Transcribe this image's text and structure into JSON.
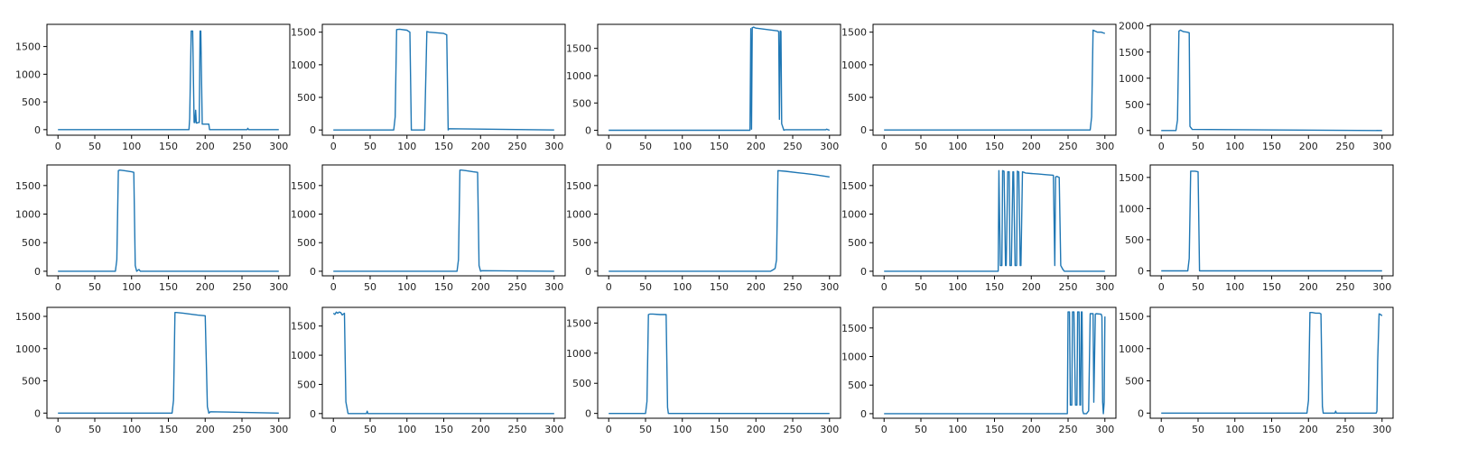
{
  "colors": {
    "series": "#1f77b4",
    "axes": "#000000",
    "background": "#ffffff"
  },
  "chart_data": [
    {
      "type": "line",
      "xlim": [
        -15,
        315
      ],
      "ylim": [
        -100,
        1900
      ],
      "xticks": [
        0,
        50,
        100,
        150,
        200,
        250,
        300
      ],
      "yticks": [
        0,
        500,
        1000,
        1500
      ],
      "series": [
        {
          "x": [
            0,
            178,
            179,
            181,
            183,
            185,
            186,
            187,
            188,
            189,
            190,
            192,
            193,
            194,
            196,
            197,
            198,
            199,
            200,
            205,
            206,
            257,
            258,
            259,
            300
          ],
          "y": [
            0,
            0,
            200,
            1780,
            1780,
            130,
            130,
            350,
            120,
            120,
            130,
            130,
            1780,
            1780,
            100,
            100,
            100,
            100,
            100,
            100,
            0,
            0,
            25,
            0,
            0
          ]
        }
      ]
    },
    {
      "type": "line",
      "xlim": [
        -15,
        315
      ],
      "ylim": [
        -80,
        1620
      ],
      "xticks": [
        0,
        50,
        100,
        150,
        200,
        250,
        300
      ],
      "yticks": [
        0,
        500,
        1000,
        1500
      ],
      "series": [
        {
          "x": [
            0,
            82,
            84,
            86,
            90,
            100,
            104,
            106,
            124,
            127,
            130,
            150,
            154,
            156,
            157,
            300
          ],
          "y": [
            0,
            0,
            200,
            1540,
            1545,
            1530,
            1500,
            0,
            0,
            1510,
            1500,
            1480,
            1460,
            0,
            20,
            0
          ]
        }
      ]
    },
    {
      "type": "line",
      "xlim": [
        -15,
        315
      ],
      "ylim": [
        -90,
        1940
      ],
      "xticks": [
        0,
        50,
        100,
        150,
        200,
        250,
        300
      ],
      "yticks": [
        0,
        500,
        1000,
        1500
      ],
      "series": [
        {
          "x": [
            0,
            192,
            193,
            194,
            195,
            196,
            197,
            198,
            200,
            230,
            231,
            232,
            233,
            234,
            235,
            238,
            240,
            295,
            296,
            300
          ],
          "y": [
            0,
            0,
            1860,
            20,
            1880,
            1880,
            1890,
            1880,
            1870,
            1820,
            1800,
            200,
            1820,
            1810,
            120,
            0,
            10,
            10,
            20,
            0
          ]
        }
      ]
    },
    {
      "type": "line",
      "xlim": [
        -15,
        315
      ],
      "ylim": [
        -80,
        1620
      ],
      "xticks": [
        0,
        50,
        100,
        150,
        200,
        250,
        300
      ],
      "yticks": [
        0,
        500,
        1000,
        1500
      ],
      "series": [
        {
          "x": [
            0,
            280,
            282,
            284,
            286,
            290,
            295,
            300
          ],
          "y": [
            0,
            0,
            200,
            1530,
            1520,
            1500,
            1500,
            1480
          ]
        }
      ]
    },
    {
      "type": "line",
      "xlim": [
        -15,
        315
      ],
      "ylim": [
        -90,
        2030
      ],
      "xticks": [
        0,
        50,
        100,
        150,
        200,
        250,
        300
      ],
      "yticks": [
        0,
        500,
        1000,
        1500,
        2000
      ],
      "series": [
        {
          "x": [
            0,
            20,
            22,
            24,
            26,
            30,
            35,
            38,
            39,
            40,
            42,
            300
          ],
          "y": [
            0,
            0,
            200,
            1900,
            1920,
            1890,
            1880,
            1870,
            80,
            60,
            20,
            0
          ]
        }
      ]
    },
    {
      "type": "line",
      "xlim": [
        -15,
        315
      ],
      "ylim": [
        -80,
        1860
      ],
      "xticks": [
        0,
        50,
        100,
        150,
        200,
        250,
        300
      ],
      "yticks": [
        0,
        500,
        1000,
        1500
      ],
      "series": [
        {
          "x": [
            0,
            78,
            80,
            82,
            84,
            90,
            100,
            103,
            105,
            107,
            110,
            112,
            300
          ],
          "y": [
            0,
            0,
            200,
            1760,
            1770,
            1760,
            1740,
            1730,
            100,
            0,
            30,
            0,
            0
          ]
        }
      ]
    },
    {
      "type": "line",
      "xlim": [
        -15,
        315
      ],
      "ylim": [
        -80,
        1860
      ],
      "xticks": [
        0,
        50,
        100,
        150,
        200,
        250,
        300
      ],
      "yticks": [
        0,
        500,
        1000,
        1500
      ],
      "series": [
        {
          "x": [
            0,
            168,
            170,
            172,
            174,
            180,
            190,
            196,
            198,
            200,
            202,
            300
          ],
          "y": [
            0,
            0,
            200,
            1770,
            1770,
            1760,
            1740,
            1730,
            100,
            0,
            10,
            0
          ]
        }
      ]
    },
    {
      "type": "line",
      "xlim": [
        -15,
        315
      ],
      "ylim": [
        -80,
        1860
      ],
      "xticks": [
        0,
        50,
        100,
        150,
        200,
        250,
        300
      ],
      "yticks": [
        0,
        500,
        1000,
        1500
      ],
      "series": [
        {
          "x": [
            0,
            220,
            224,
            226,
            228,
            230,
            240,
            260,
            280,
            300
          ],
          "y": [
            0,
            0,
            30,
            50,
            200,
            1760,
            1750,
            1720,
            1690,
            1650
          ]
        }
      ]
    },
    {
      "type": "line",
      "xlim": [
        -15,
        315
      ],
      "ylim": [
        -80,
        1860
      ],
      "xticks": [
        0,
        50,
        100,
        150,
        200,
        250,
        300
      ],
      "yticks": [
        0,
        500,
        1000,
        1500
      ],
      "series": [
        {
          "x": [
            0,
            155,
            156,
            158,
            160,
            161,
            163,
            165,
            166,
            168,
            170,
            171,
            173,
            175,
            176,
            178,
            180,
            181,
            183,
            185,
            186,
            188,
            190,
            192,
            200,
            210,
            220,
            230,
            232,
            233,
            235,
            238,
            240,
            243,
            245,
            300
          ],
          "y": [
            0,
            0,
            1760,
            100,
            100,
            1760,
            1750,
            100,
            100,
            1740,
            1740,
            100,
            100,
            1740,
            1740,
            100,
            100,
            1750,
            1740,
            100,
            100,
            1740,
            1730,
            1720,
            1710,
            1700,
            1690,
            1680,
            100,
            1650,
            1660,
            1640,
            100,
            30,
            0,
            0
          ]
        }
      ]
    },
    {
      "type": "line",
      "xlim": [
        -15,
        315
      ],
      "ylim": [
        -80,
        1700
      ],
      "xticks": [
        0,
        50,
        100,
        150,
        200,
        250,
        300
      ],
      "yticks": [
        0,
        500,
        1000,
        1500
      ],
      "series": [
        {
          "x": [
            0,
            36,
            38,
            40,
            46,
            50,
            52,
            300
          ],
          "y": [
            0,
            0,
            200,
            1600,
            1600,
            1590,
            0,
            0
          ]
        }
      ]
    },
    {
      "type": "line",
      "xlim": [
        -15,
        315
      ],
      "ylim": [
        -80,
        1640
      ],
      "xticks": [
        0,
        50,
        100,
        150,
        200,
        250,
        300
      ],
      "yticks": [
        0,
        500,
        1000,
        1500
      ],
      "series": [
        {
          "x": [
            0,
            155,
            157,
            159,
            161,
            170,
            190,
            200,
            203,
            205,
            207,
            300
          ],
          "y": [
            0,
            0,
            200,
            1560,
            1560,
            1550,
            1520,
            1510,
            100,
            0,
            20,
            0
          ]
        }
      ]
    },
    {
      "type": "line",
      "xlim": [
        -15,
        315
      ],
      "ylim": [
        -80,
        1820
      ],
      "xticks": [
        0,
        50,
        100,
        150,
        200,
        250,
        300
      ],
      "yticks": [
        0,
        500,
        1000,
        1500
      ],
      "series": [
        {
          "x": [
            0,
            2,
            4,
            6,
            8,
            10,
            12,
            15,
            17,
            20,
            45,
            46,
            47,
            300
          ],
          "y": [
            1720,
            1700,
            1740,
            1720,
            1740,
            1730,
            1690,
            1720,
            200,
            0,
            0,
            40,
            0,
            0
          ]
        }
      ]
    },
    {
      "type": "line",
      "xlim": [
        -15,
        315
      ],
      "ylim": [
        -80,
        1760
      ],
      "xticks": [
        0,
        50,
        100,
        150,
        200,
        250,
        300
      ],
      "yticks": [
        0,
        500,
        1000,
        1500
      ],
      "series": [
        {
          "x": [
            0,
            50,
            52,
            54,
            56,
            60,
            70,
            78,
            80,
            81,
            300
          ],
          "y": [
            0,
            0,
            200,
            1640,
            1650,
            1650,
            1640,
            1640,
            100,
            0,
            0
          ]
        }
      ]
    },
    {
      "type": "line",
      "xlim": [
        -15,
        315
      ],
      "ylim": [
        -80,
        1860
      ],
      "xticks": [
        0,
        50,
        100,
        150,
        200,
        250,
        300
      ],
      "yticks": [
        0,
        500,
        1000,
        1500
      ],
      "series": [
        {
          "x": [
            0,
            249,
            250,
            252,
            253,
            255,
            256,
            258,
            260,
            262,
            263,
            265,
            266,
            267,
            268,
            269,
            270,
            271,
            275,
            278,
            280,
            284,
            285,
            287,
            288,
            295,
            296,
            297,
            298,
            299,
            300
          ],
          "y": [
            0,
            0,
            1780,
            1780,
            150,
            150,
            1780,
            1780,
            150,
            150,
            1780,
            1780,
            150,
            150,
            1780,
            1780,
            50,
            0,
            0,
            50,
            1750,
            1750,
            200,
            1740,
            1750,
            1740,
            1700,
            200,
            0,
            200,
            1700
          ]
        }
      ]
    },
    {
      "type": "line",
      "xlim": [
        -15,
        315
      ],
      "ylim": [
        -80,
        1640
      ],
      "xticks": [
        0,
        50,
        100,
        150,
        200,
        250,
        300
      ],
      "yticks": [
        0,
        500,
        1000,
        1500
      ],
      "series": [
        {
          "x": [
            0,
            198,
            200,
            202,
            205,
            210,
            215,
            217,
            219,
            220,
            236,
            237,
            238,
            292,
            293,
            294,
            296,
            298,
            300
          ],
          "y": [
            0,
            0,
            200,
            1560,
            1560,
            1550,
            1550,
            1540,
            100,
            0,
            0,
            30,
            0,
            0,
            30,
            800,
            1540,
            1530,
            1510
          ]
        }
      ]
    }
  ]
}
